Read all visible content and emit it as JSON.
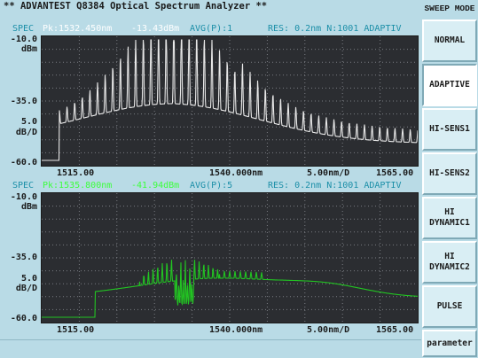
{
  "title": "** ADVANTEST Q8384 Optical Spectrum Analyzer **",
  "trace1": {
    "header": {
      "spec": "SPEC",
      "pk": "Pk:1532.450nm",
      "level": "-13.43dBm",
      "avg": "AVG(P):1",
      "res": "RES: 0.2nm N:1001 ADAPTIV"
    },
    "y_top": "-10.0",
    "y_top_unit": "dBm",
    "y_mid": "-35.0",
    "y_scale": "5.0",
    "y_scale_unit": "dB/D",
    "y_bottom": "-60.0",
    "x_start": "1515.00",
    "x_center": "1540.000nm",
    "x_span": "5.00nm/D",
    "x_stop": "1565.00",
    "trace_color": "#e8e8e8"
  },
  "trace2": {
    "header": {
      "spec": "SPEC",
      "pk": "Pk:1535.800nm",
      "level": "-41.94dBm",
      "avg": "AVG(P):5",
      "res": "RES: 0.2nm N:1001 ADAPTIV"
    },
    "y_top": "-10.0",
    "y_top_unit": "dBm",
    "y_mid": "-35.0",
    "y_scale": "5.0",
    "y_scale_unit": "dB/D",
    "y_bottom": "-60.0",
    "x_start": "1515.00",
    "x_center": "1540.000nm",
    "x_span": "5.00nm/D",
    "x_stop": "1565.00",
    "trace_color": "#22c422"
  },
  "sidebar": {
    "title": "SWEEP MODE",
    "buttons": [
      {
        "label": "NORMAL"
      },
      {
        "label": "ADAPTIVE"
      },
      {
        "label": "HI-SENS1"
      },
      {
        "label": "HI-SENS2"
      },
      {
        "label": "HI\nDYNAMIC1"
      },
      {
        "label": "HI\nDYNAMIC2"
      },
      {
        "label": "PULSE"
      },
      {
        "label": "parameter"
      }
    ],
    "active": "ADAPTIVE"
  },
  "colors": {
    "background": "#b9dbe6",
    "plot_bg": "#2b2d31",
    "grid": "#7a7d82",
    "header_label": "#1c8fa8"
  }
}
